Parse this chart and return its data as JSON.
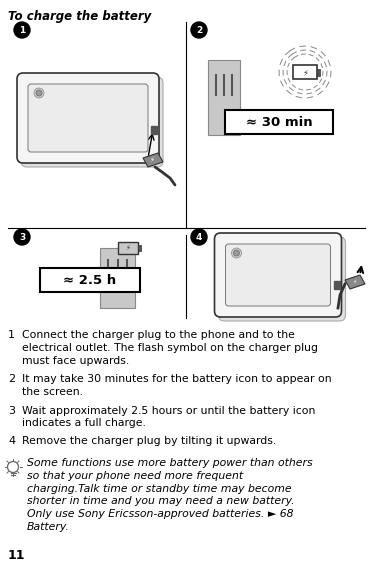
{
  "title": "To charge the battery",
  "bg_color": "#ffffff",
  "text_color": "#000000",
  "page_number": "11",
  "step1": "Connect the charger plug to the phone and to the\nelectrical outlet. The flash symbol on the charger plug\nmust face upwards.",
  "step2": "It may take 30 minutes for the battery icon to appear on\nthe screen.",
  "step3": "Wait approximately 2.5 hours or until the battery icon\nindicates a full charge.",
  "step4": "Remove the charger plug by tilting it upwards.",
  "note": "Some functions use more battery power than others\nso that your phone need more frequent\ncharging.Talk time or standby time may become\nshorter in time and you may need a new battery.\nOnly use Sony Ericsson-approved batteries. ► 68\nBattery.",
  "label_30min": "≈ 30 min",
  "label_25h": "≈ 2.5 h",
  "divider_color": "#000000",
  "gray_fill": "#c8c8c8",
  "dark_gray": "#555555"
}
